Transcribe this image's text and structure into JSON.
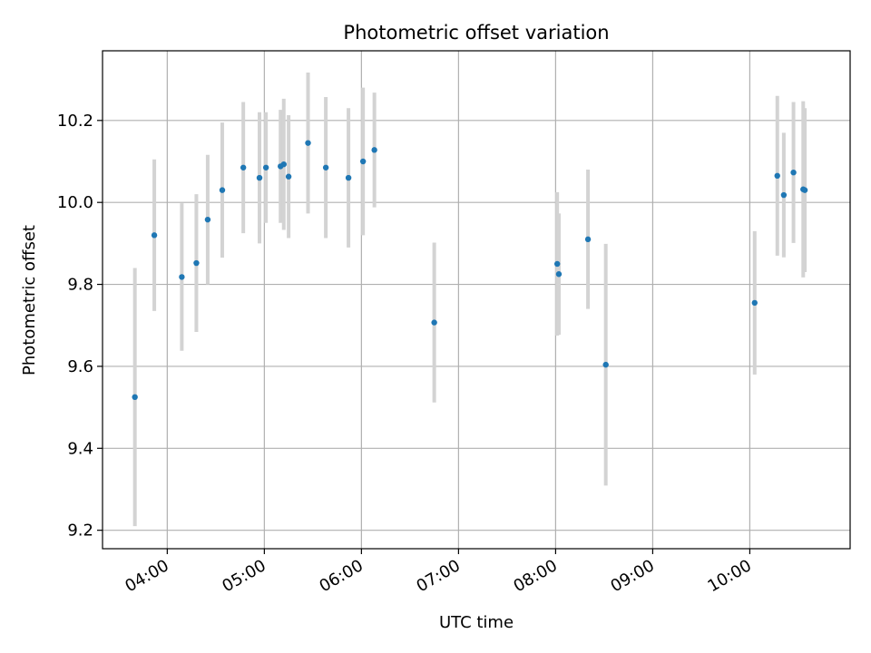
{
  "chart_data": {
    "type": "scatter",
    "title": "Photometric offset variation",
    "xlabel": "UTC time",
    "ylabel": "Photometric offset",
    "x_type": "time",
    "xlim": [
      "03:20",
      "11:02"
    ],
    "ylim": [
      9.155,
      10.37
    ],
    "x_ticks": [
      "04:00",
      "05:00",
      "06:00",
      "07:00",
      "08:00",
      "09:00",
      "10:00"
    ],
    "y_ticks": [
      9.2,
      9.4,
      9.6,
      9.8,
      10.0,
      10.2
    ],
    "grid": true,
    "legend": "none",
    "colors": {
      "point": "#1f77b4",
      "errorbar": "#d3d3d3",
      "grid": "#b0b0b0",
      "axes": "#000000"
    },
    "series": [
      {
        "points": [
          {
            "x": "03:40",
            "y": 9.525,
            "err": 0.315
          },
          {
            "x": "03:52",
            "y": 9.92,
            "err": 0.185
          },
          {
            "x": "04:09",
            "y": 9.818,
            "err": 0.18
          },
          {
            "x": "04:18",
            "y": 9.852,
            "err": 0.168
          },
          {
            "x": "04:25",
            "y": 9.958,
            "err": 0.158
          },
          {
            "x": "04:34",
            "y": 10.03,
            "err": 0.165
          },
          {
            "x": "04:47",
            "y": 10.085,
            "err": 0.16
          },
          {
            "x": "04:57",
            "y": 10.06,
            "err": 0.16
          },
          {
            "x": "05:01",
            "y": 10.085,
            "err": 0.135
          },
          {
            "x": "05:10",
            "y": 10.088,
            "err": 0.138
          },
          {
            "x": "05:12",
            "y": 10.093,
            "err": 0.16
          },
          {
            "x": "05:15",
            "y": 10.063,
            "err": 0.15
          },
          {
            "x": "05:27",
            "y": 10.145,
            "err": 0.172
          },
          {
            "x": "05:38",
            "y": 10.085,
            "err": 0.172
          },
          {
            "x": "05:52",
            "y": 10.06,
            "err": 0.17
          },
          {
            "x": "06:01",
            "y": 10.1,
            "err": 0.18
          },
          {
            "x": "06:08",
            "y": 10.128,
            "err": 0.14
          },
          {
            "x": "06:45",
            "y": 9.707,
            "err": 0.195
          },
          {
            "x": "08:01",
            "y": 9.85,
            "err": 0.175
          },
          {
            "x": "08:02",
            "y": 9.825,
            "err": 0.148
          },
          {
            "x": "08:20",
            "y": 9.91,
            "err": 0.17
          },
          {
            "x": "08:31",
            "y": 9.604,
            "err": 0.295
          },
          {
            "x": "10:03",
            "y": 9.755,
            "err": 0.175
          },
          {
            "x": "10:17",
            "y": 10.065,
            "err": 0.195
          },
          {
            "x": "10:21",
            "y": 10.018,
            "err": 0.152
          },
          {
            "x": "10:27",
            "y": 10.073,
            "err": 0.172
          },
          {
            "x": "10:33",
            "y": 10.032,
            "err": 0.215
          },
          {
            "x": "10:34",
            "y": 10.03,
            "err": 0.2
          }
        ]
      }
    ]
  }
}
